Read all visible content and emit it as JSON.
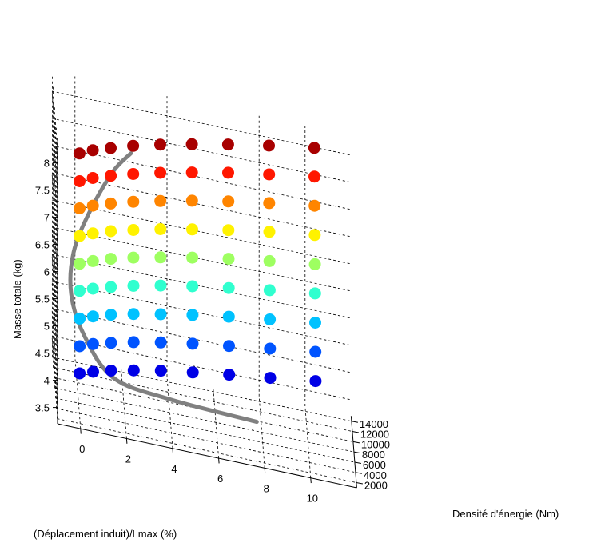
{
  "chart_data": {
    "type": "scatter",
    "subtype": "3d-scatter-with-curve",
    "title": "",
    "xlabel": "(Déplacement induit)/Lmax (%)",
    "ylabel": "Densité d'énergie (Nm)",
    "zlabel": "Masse totale (kg)",
    "xticks": [
      "0",
      "2",
      "4",
      "6",
      "8",
      "10"
    ],
    "yticks": [
      "2000",
      "4000",
      "6000",
      "8000",
      "10000",
      "12000",
      "14000"
    ],
    "zticks": [
      "3.5",
      "4",
      "4.5",
      "5",
      "5.5",
      "6",
      "6.5",
      "7",
      "7.5",
      "8"
    ],
    "xlim": [
      -1,
      12
    ],
    "ylim": [
      1000,
      15000
    ],
    "zlim": [
      3.2,
      8.4
    ],
    "grid": true,
    "colormap": "jet",
    "color_by": "Masse totale (kg)",
    "curve_color": "#808080",
    "series": [
      {
        "mass": 4.0,
        "points": [
          [
            0.0,
            3300
          ],
          [
            0.6,
            4200
          ],
          [
            1.4,
            5200
          ],
          [
            2.4,
            6200
          ],
          [
            3.6,
            7300
          ],
          [
            5.0,
            8300
          ],
          [
            6.6,
            9400
          ],
          [
            8.4,
            10500
          ],
          [
            10.4,
            11800
          ]
        ]
      },
      {
        "mass": 4.5,
        "points": [
          [
            0.0,
            3300
          ],
          [
            0.6,
            4300
          ],
          [
            1.4,
            5300
          ],
          [
            2.4,
            6400
          ],
          [
            3.6,
            7500
          ],
          [
            5.0,
            8600
          ],
          [
            6.6,
            9700
          ],
          [
            8.4,
            10900
          ],
          [
            10.4,
            12200
          ]
        ]
      },
      {
        "mass": 5.0,
        "points": [
          [
            0.0,
            3400
          ],
          [
            0.6,
            4400
          ],
          [
            1.4,
            5500
          ],
          [
            2.4,
            6600
          ],
          [
            3.6,
            7700
          ],
          [
            5.0,
            8900
          ],
          [
            6.6,
            10100
          ],
          [
            8.4,
            11300
          ],
          [
            10.4,
            12600
          ]
        ]
      },
      {
        "mass": 5.5,
        "points": [
          [
            0.0,
            3500
          ],
          [
            0.6,
            4500
          ],
          [
            1.4,
            5600
          ],
          [
            2.4,
            6800
          ],
          [
            3.6,
            8000
          ],
          [
            5.0,
            9200
          ],
          [
            6.6,
            10400
          ],
          [
            8.4,
            11700
          ],
          [
            10.4,
            13000
          ]
        ]
      },
      {
        "mass": 6.0,
        "points": [
          [
            0.0,
            3500
          ],
          [
            0.6,
            4600
          ],
          [
            1.4,
            5800
          ],
          [
            2.4,
            7000
          ],
          [
            3.6,
            8200
          ],
          [
            5.0,
            9500
          ],
          [
            6.6,
            10800
          ],
          [
            8.4,
            12100
          ],
          [
            10.4,
            13400
          ]
        ]
      },
      {
        "mass": 6.5,
        "points": [
          [
            0.0,
            3600
          ],
          [
            0.6,
            4700
          ],
          [
            1.4,
            5900
          ],
          [
            2.4,
            7100
          ],
          [
            3.6,
            8400
          ],
          [
            5.0,
            9700
          ],
          [
            6.6,
            11100
          ],
          [
            8.4,
            12500
          ],
          [
            10.4,
            13800
          ]
        ]
      },
      {
        "mass": 7.0,
        "points": [
          [
            0.0,
            3700
          ],
          [
            0.6,
            4800
          ],
          [
            1.4,
            6000
          ],
          [
            2.4,
            7300
          ],
          [
            3.6,
            8600
          ],
          [
            5.0,
            10000
          ],
          [
            6.6,
            11400
          ],
          [
            8.4,
            12800
          ],
          [
            10.4,
            14200
          ]
        ]
      },
      {
        "mass": 7.5,
        "points": [
          [
            0.0,
            3700
          ],
          [
            0.6,
            4900
          ],
          [
            1.4,
            6100
          ],
          [
            2.4,
            7400
          ],
          [
            3.6,
            8800
          ],
          [
            5.0,
            10200
          ],
          [
            6.6,
            11700
          ],
          [
            8.4,
            13100
          ],
          [
            10.4,
            14600
          ]
        ]
      },
      {
        "mass": 8.0,
        "points": [
          [
            0.0,
            3800
          ],
          [
            0.6,
            5000
          ],
          [
            1.4,
            6200
          ],
          [
            2.4,
            7600
          ],
          [
            3.6,
            9000
          ],
          [
            5.0,
            10400
          ],
          [
            6.6,
            11900
          ],
          [
            8.4,
            13400
          ],
          [
            10.4,
            14900
          ]
        ]
      }
    ],
    "curve": [
      [
        7.8,
        9300,
        3.25
      ],
      [
        4.0,
        6300,
        3.6
      ],
      [
        1.5,
        3800,
        4.0
      ],
      [
        0.2,
        2200,
        4.8
      ],
      [
        -0.4,
        1400,
        5.6
      ],
      [
        -0.3,
        1200,
        6.4
      ],
      [
        0.4,
        1300,
        7.2
      ],
      [
        1.4,
        1500,
        8.0
      ],
      [
        2.2,
        1700,
        8.4
      ]
    ]
  }
}
